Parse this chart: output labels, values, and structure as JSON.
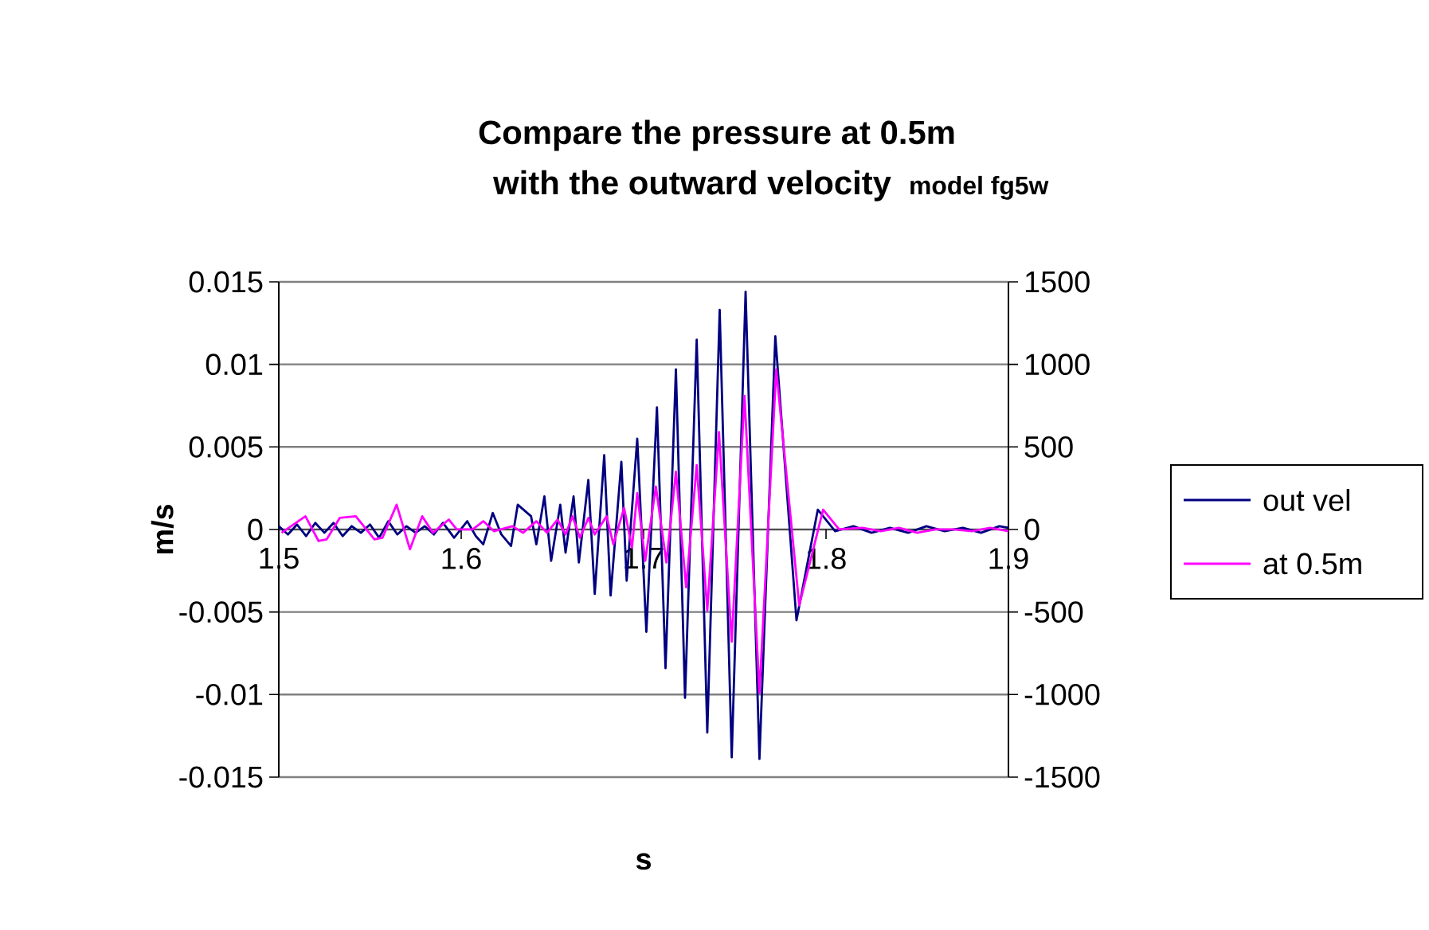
{
  "chart_data": {
    "type": "line",
    "title": "Compare the pressure at 0.5m",
    "subtitle": "with the outward velocity",
    "annotations": [
      "model fg5w"
    ],
    "xlabel": "s",
    "ylabel": "m/s",
    "xlim": [
      1.5,
      1.9
    ],
    "xticks": [
      1.5,
      1.6,
      1.7,
      1.8,
      1.9
    ],
    "ylim": [
      -0.015,
      0.015
    ],
    "yticks": [
      -0.015,
      -0.01,
      -0.005,
      0,
      0.005,
      0.01,
      0.015
    ],
    "y2lim": [
      -1500,
      1500
    ],
    "y2ticks": [
      -1500,
      -1000,
      -500,
      0,
      500,
      1000,
      1500
    ],
    "grid": "y",
    "legend": "right",
    "series": [
      {
        "name": "out vel",
        "color": "#000080",
        "x": [
          1.5,
          1.505,
          1.51,
          1.515,
          1.52,
          1.525,
          1.53,
          1.535,
          1.54,
          1.545,
          1.55,
          1.555,
          1.56,
          1.565,
          1.57,
          1.575,
          1.58,
          1.585,
          1.59,
          1.5961,
          1.6033,
          1.608,
          1.6121,
          1.6173,
          1.622,
          1.6273,
          1.631,
          1.6383,
          1.6412,
          1.6456,
          1.6493,
          1.6543,
          1.6572,
          1.6616,
          1.6645,
          1.6697,
          1.6732,
          1.6784,
          1.6819,
          1.6878,
          1.6907,
          1.6965,
          1.7015,
          1.7073,
          1.712,
          1.7177,
          1.7227,
          1.7291,
          1.7349,
          1.7417,
          1.7483,
          1.7559,
          1.7635,
          1.7722,
          1.7838,
          1.7955,
          1.805,
          1.815,
          1.825,
          1.835,
          1.845,
          1.855,
          1.865,
          1.875,
          1.885,
          1.895,
          1.9
        ],
        "values": [
          0.0002,
          -0.0003,
          0.0003,
          -0.0004,
          0.0004,
          -0.0002,
          0.0004,
          -0.0004,
          0.0002,
          -0.0002,
          0.0003,
          -0.0005,
          0.0005,
          -0.0003,
          0.0002,
          -0.0002,
          0.0002,
          -0.0003,
          0.0004,
          -0.0005,
          0.0005,
          -0.0004,
          -0.0009,
          0.001,
          -0.0003,
          -0.001,
          0.0015,
          0.0008,
          -0.0009,
          0.002,
          -0.0019,
          0.0015,
          -0.0014,
          0.002,
          -0.002,
          0.003,
          -0.0039,
          0.0045,
          -0.004,
          0.0041,
          -0.0031,
          0.0055,
          -0.0062,
          0.0074,
          -0.0084,
          0.0097,
          -0.0102,
          0.0115,
          -0.0123,
          0.0133,
          -0.0138,
          0.0144,
          -0.0139,
          0.0117,
          -0.0055,
          0.0012,
          -0.0001,
          0.0002,
          -0.0002,
          0.0001,
          -0.0002,
          0.0002,
          -0.0001,
          0.0001,
          -0.0002,
          0.0002,
          0.0001
        ]
      },
      {
        "name": "at 0.5m",
        "color": "#ff00ff",
        "axis": "y2",
        "x": [
          1.5015,
          1.5146,
          1.5218,
          1.5262,
          1.5334,
          1.5422,
          1.5524,
          1.5568,
          1.5646,
          1.5719,
          1.5786,
          1.5845,
          1.5932,
          1.5976,
          1.6063,
          1.6121,
          1.6179,
          1.6281,
          1.6339,
          1.6412,
          1.647,
          1.6528,
          1.6572,
          1.661,
          1.6651,
          1.6697,
          1.6732,
          1.6797,
          1.6834,
          1.6893,
          1.6936,
          1.6965,
          1.7009,
          1.7067,
          1.7125,
          1.7177,
          1.7233,
          1.7291,
          1.7349,
          1.7413,
          1.7483,
          1.7553,
          1.7635,
          1.7727,
          1.7853,
          1.7984,
          1.8072,
          1.82,
          1.83,
          1.84,
          1.85,
          1.86,
          1.87,
          1.88,
          1.89,
          1.9
        ],
        "values": [
          -20,
          80,
          -70,
          -60,
          70,
          80,
          -60,
          -50,
          150,
          -120,
          80,
          -20,
          60,
          0,
          0,
          50,
          -10,
          20,
          -20,
          50,
          -20,
          60,
          -30,
          80,
          -50,
          70,
          -30,
          80,
          -90,
          130,
          -110,
          220,
          -190,
          260,
          -200,
          350,
          -350,
          390,
          -490,
          590,
          -680,
          810,
          -990,
          970,
          -460,
          120,
          0,
          10,
          -10,
          10,
          -20,
          0,
          0,
          -10,
          10,
          -10
        ]
      }
    ]
  }
}
